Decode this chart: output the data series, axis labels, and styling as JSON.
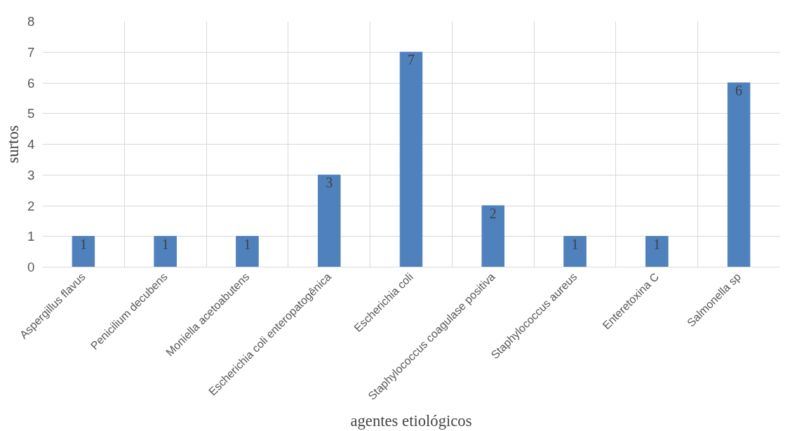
{
  "chart_data": {
    "type": "bar",
    "xlabel": "agentes etiológicos",
    "ylabel": "surtos",
    "categories": [
      "Aspergillus flavus",
      "Penicilium decubens",
      "Moniella acetoabutens",
      "Escherichia coli enteropatogênica",
      "Escherichia coli",
      "Staphylococcus coagulase positiva",
      "Staphylococcus aureus",
      "Enteretoxina C",
      "Salmonella sp"
    ],
    "values": [
      1,
      1,
      1,
      3,
      7,
      2,
      1,
      1,
      6
    ],
    "color": "#4f81bd",
    "ylim": [
      0,
      8
    ],
    "yticks": [
      0,
      1,
      2,
      3,
      4,
      5,
      6,
      7,
      8
    ],
    "grid": true,
    "data_labels": true
  }
}
